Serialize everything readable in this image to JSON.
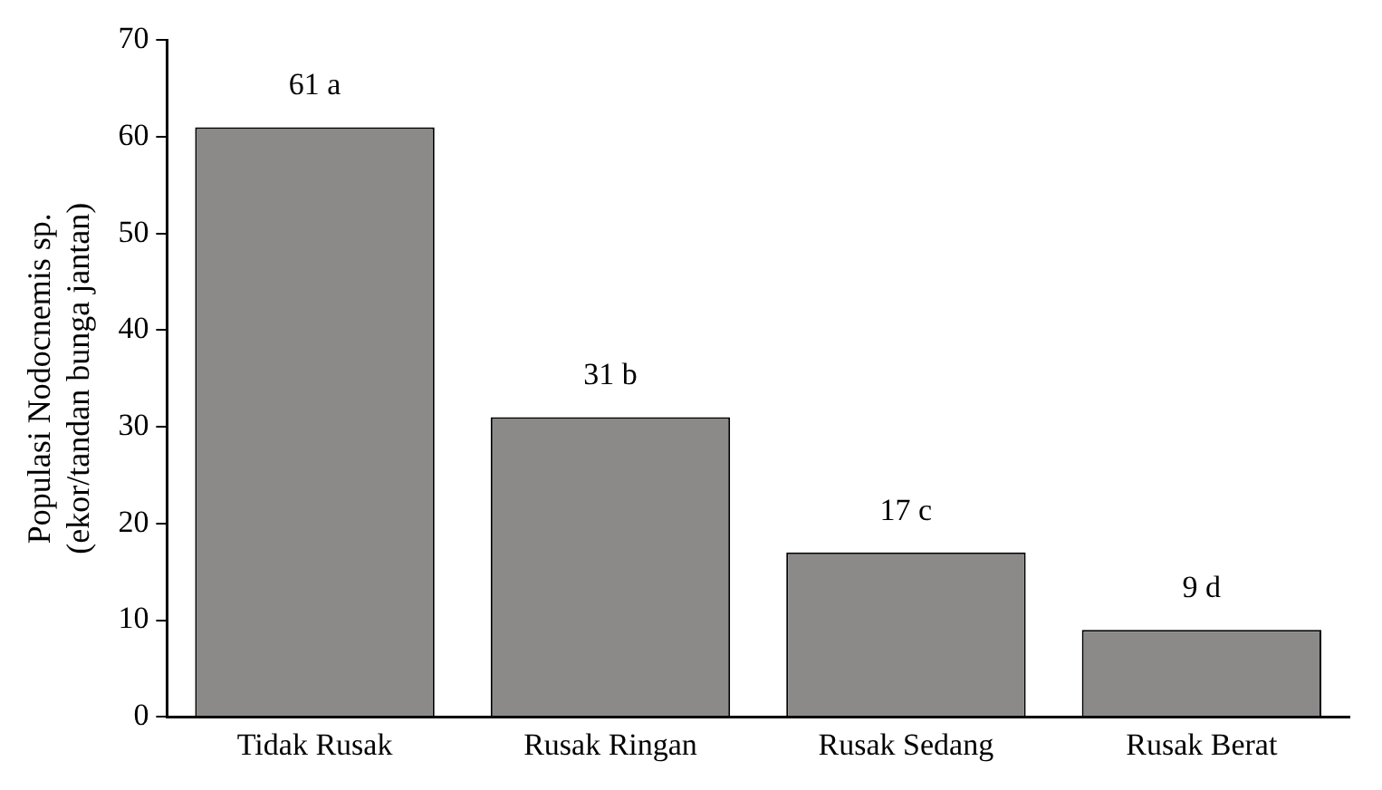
{
  "chart_data": {
    "type": "bar",
    "ylabel": "Populasi Nodocnemis sp.\n(ekor/tandan bunga jantan)",
    "categories": [
      "Tidak Rusak",
      "Rusak Ringan",
      "Rusak Sedang",
      "Rusak Berat"
    ],
    "values": [
      61,
      31,
      17,
      9
    ],
    "value_labels": [
      "61 a",
      "31 b",
      "17 c",
      "9 d"
    ],
    "color": "#8c8989",
    "ylim": [
      0,
      70
    ],
    "yticks": [
      0,
      10,
      20,
      30,
      40,
      50,
      60,
      70
    ],
    "grid": false,
    "legend": false
  }
}
